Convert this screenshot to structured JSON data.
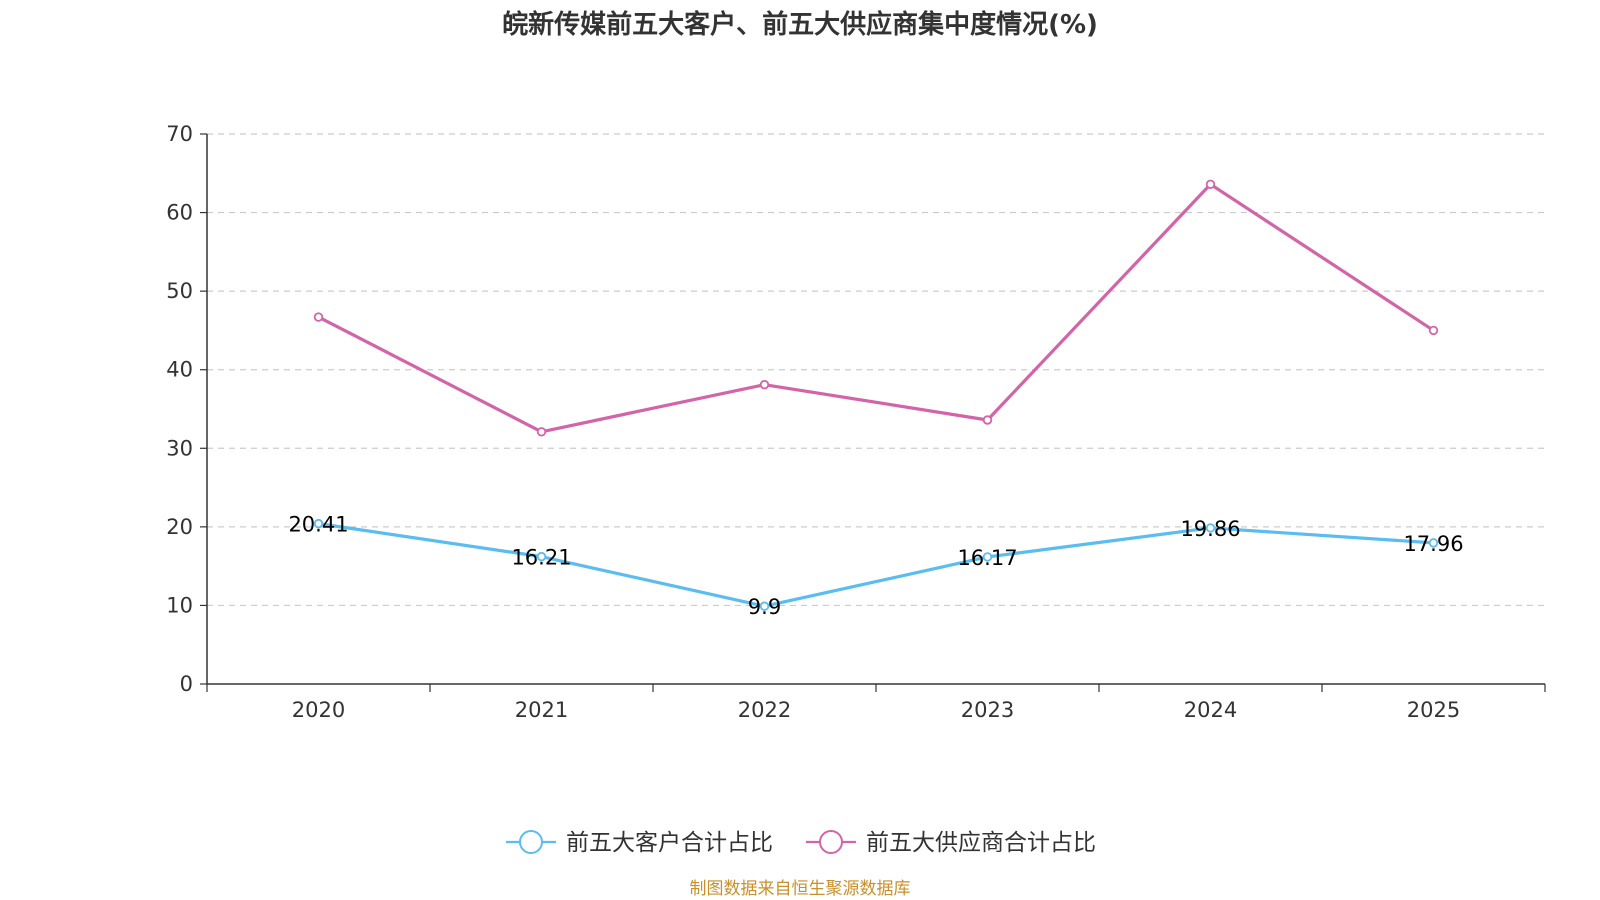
{
  "chart_data": {
    "type": "line",
    "title": "皖新传媒前五大客户、前五大供应商集中度情况(%)",
    "categories": [
      "2020",
      "2021",
      "2022",
      "2023",
      "2024",
      "2025"
    ],
    "ylim": [
      0,
      70
    ],
    "yticks": [
      0,
      10,
      20,
      30,
      40,
      50,
      60,
      70
    ],
    "grid": true,
    "legend_position": "bottom",
    "series": [
      {
        "name": "前五大客户合计占比",
        "color": "#5bbcf0",
        "values": [
          20.41,
          16.21,
          9.9,
          16.17,
          19.86,
          17.96
        ],
        "labels": [
          "20.41",
          "16.21",
          "9.9",
          "16.17",
          "19.86",
          "17.96"
        ]
      },
      {
        "name": "前五大供应商合计占比",
        "color": "#d264a8",
        "values": [
          46.7,
          32.1,
          38.1,
          33.6,
          63.6,
          45.0
        ]
      }
    ]
  },
  "footer": {
    "source": "制图数据来自恒生聚源数据库"
  }
}
